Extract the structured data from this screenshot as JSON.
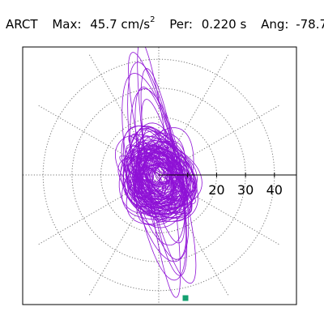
{
  "header": {
    "station": "ARCT",
    "max_label": "Max:",
    "max_value": "45.7 cm/s",
    "max_unit_exp": "2",
    "per_label": "Per:",
    "per_value": "0.220 s",
    "ang_label": "Ang:",
    "ang_value": "-78.7"
  },
  "chart_data": {
    "type": "polar-particle-motion",
    "radial_ticks": [
      10,
      20,
      30,
      40
    ],
    "radial_tick_labels": [
      "20",
      "30",
      "40"
    ],
    "rlim": [
      0,
      45.7
    ],
    "grid": true,
    "spokes_deg": [
      0,
      30,
      60,
      90,
      120,
      150,
      180,
      210,
      240,
      270,
      300,
      330
    ],
    "max_amplitude": 45.7,
    "max_angle_deg": -78.7,
    "colors": {
      "trace": "#8f12d6",
      "marker": "#13a070",
      "grid": "#777777",
      "axis": "#000000"
    }
  }
}
